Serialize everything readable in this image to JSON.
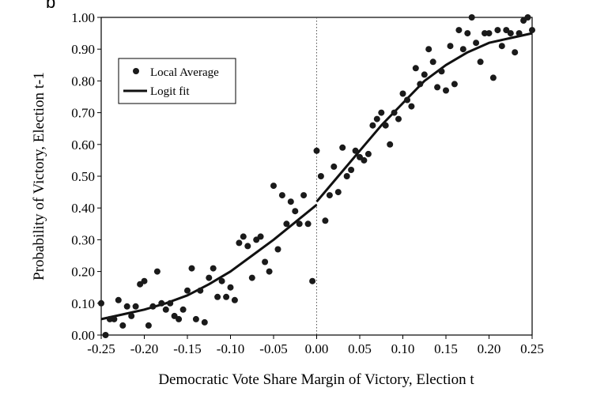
{
  "panel_label": "b",
  "chart_data": {
    "type": "scatter",
    "title": "",
    "xlabel": "Democratic Vote Share Margin of Victory, Election t",
    "ylabel": "Probability of Victory, Election t-1",
    "xlim": [
      -0.25,
      0.25
    ],
    "ylim": [
      0.0,
      1.0
    ],
    "x_ticks": [
      "-0.25",
      "-0.20",
      "-0.15",
      "-0.10",
      "-0.05",
      "0.00",
      "0.05",
      "0.10",
      "0.15",
      "0.20",
      "0.25"
    ],
    "y_ticks": [
      "0.00",
      "0.10",
      "0.20",
      "0.30",
      "0.40",
      "0.50",
      "0.60",
      "0.70",
      "0.80",
      "0.90",
      "1.00"
    ],
    "grid": false,
    "cutoff_line": {
      "x": 0.0,
      "style": "dotted"
    },
    "legend": {
      "placement": "upper-left",
      "entries": [
        {
          "label": "Local Average",
          "marker": "dot"
        },
        {
          "label": "Logit fit",
          "marker": "line"
        }
      ]
    },
    "series": [
      {
        "name": "Local Average",
        "kind": "points",
        "color": "#1a1a1a",
        "points": [
          [
            -0.25,
            0.1
          ],
          [
            -0.245,
            0.0
          ],
          [
            -0.24,
            0.05
          ],
          [
            -0.235,
            0.05
          ],
          [
            -0.23,
            0.11
          ],
          [
            -0.225,
            0.03
          ],
          [
            -0.22,
            0.09
          ],
          [
            -0.215,
            0.06
          ],
          [
            -0.21,
            0.09
          ],
          [
            -0.205,
            0.16
          ],
          [
            -0.2,
            0.17
          ],
          [
            -0.195,
            0.03
          ],
          [
            -0.19,
            0.09
          ],
          [
            -0.185,
            0.2
          ],
          [
            -0.18,
            0.1
          ],
          [
            -0.175,
            0.08
          ],
          [
            -0.17,
            0.1
          ],
          [
            -0.165,
            0.06
          ],
          [
            -0.16,
            0.05
          ],
          [
            -0.155,
            0.08
          ],
          [
            -0.15,
            0.14
          ],
          [
            -0.145,
            0.21
          ],
          [
            -0.14,
            0.05
          ],
          [
            -0.135,
            0.14
          ],
          [
            -0.13,
            0.04
          ],
          [
            -0.125,
            0.18
          ],
          [
            -0.12,
            0.21
          ],
          [
            -0.115,
            0.12
          ],
          [
            -0.11,
            0.17
          ],
          [
            -0.105,
            0.12
          ],
          [
            -0.1,
            0.15
          ],
          [
            -0.095,
            0.11
          ],
          [
            -0.09,
            0.29
          ],
          [
            -0.085,
            0.31
          ],
          [
            -0.08,
            0.28
          ],
          [
            -0.075,
            0.18
          ],
          [
            -0.07,
            0.3
          ],
          [
            -0.065,
            0.31
          ],
          [
            -0.06,
            0.23
          ],
          [
            -0.055,
            0.2
          ],
          [
            -0.05,
            0.47
          ],
          [
            -0.045,
            0.27
          ],
          [
            -0.04,
            0.44
          ],
          [
            -0.035,
            0.35
          ],
          [
            -0.03,
            0.42
          ],
          [
            -0.025,
            0.39
          ],
          [
            -0.02,
            0.35
          ],
          [
            -0.015,
            0.44
          ],
          [
            -0.01,
            0.35
          ],
          [
            -0.005,
            0.17
          ],
          [
            0.0,
            0.58
          ],
          [
            0.005,
            0.5
          ],
          [
            0.01,
            0.36
          ],
          [
            0.015,
            0.44
          ],
          [
            0.02,
            0.53
          ],
          [
            0.025,
            0.45
          ],
          [
            0.03,
            0.59
          ],
          [
            0.035,
            0.5
          ],
          [
            0.04,
            0.52
          ],
          [
            0.045,
            0.58
          ],
          [
            0.05,
            0.56
          ],
          [
            0.055,
            0.55
          ],
          [
            0.06,
            0.57
          ],
          [
            0.065,
            0.66
          ],
          [
            0.07,
            0.68
          ],
          [
            0.075,
            0.7
          ],
          [
            0.08,
            0.66
          ],
          [
            0.085,
            0.6
          ],
          [
            0.09,
            0.7
          ],
          [
            0.095,
            0.68
          ],
          [
            0.1,
            0.76
          ],
          [
            0.105,
            0.74
          ],
          [
            0.11,
            0.72
          ],
          [
            0.115,
            0.84
          ],
          [
            0.12,
            0.79
          ],
          [
            0.125,
            0.82
          ],
          [
            0.13,
            0.9
          ],
          [
            0.135,
            0.86
          ],
          [
            0.14,
            0.78
          ],
          [
            0.145,
            0.83
          ],
          [
            0.15,
            0.77
          ],
          [
            0.155,
            0.91
          ],
          [
            0.16,
            0.79
          ],
          [
            0.165,
            0.96
          ],
          [
            0.17,
            0.9
          ],
          [
            0.175,
            0.95
          ],
          [
            0.18,
            1.0
          ],
          [
            0.185,
            0.92
          ],
          [
            0.19,
            0.86
          ],
          [
            0.195,
            0.95
          ],
          [
            0.2,
            0.95
          ],
          [
            0.205,
            0.81
          ],
          [
            0.21,
            0.96
          ],
          [
            0.215,
            0.91
          ],
          [
            0.22,
            0.96
          ],
          [
            0.225,
            0.95
          ],
          [
            0.23,
            0.89
          ],
          [
            0.235,
            0.95
          ],
          [
            0.24,
            0.99
          ],
          [
            0.245,
            1.0
          ],
          [
            0.25,
            0.96
          ]
        ]
      },
      {
        "name": "Logit fit",
        "kind": "curve",
        "color": "#111111",
        "segments": [
          {
            "x": [
              -0.25,
              -0.225,
              -0.2,
              -0.175,
              -0.15,
              -0.125,
              -0.1,
              -0.075,
              -0.05,
              -0.025,
              0.0
            ],
            "y": [
              0.05,
              0.065,
              0.08,
              0.1,
              0.125,
              0.16,
              0.2,
              0.25,
              0.3,
              0.355,
              0.41
            ]
          },
          {
            "x": [
              0.0,
              0.025,
              0.05,
              0.075,
              0.1,
              0.125,
              0.15,
              0.175,
              0.2,
              0.225,
              0.25
            ],
            "y": [
              0.42,
              0.5,
              0.58,
              0.66,
              0.73,
              0.8,
              0.85,
              0.89,
              0.92,
              0.935,
              0.95
            ]
          }
        ]
      }
    ]
  }
}
